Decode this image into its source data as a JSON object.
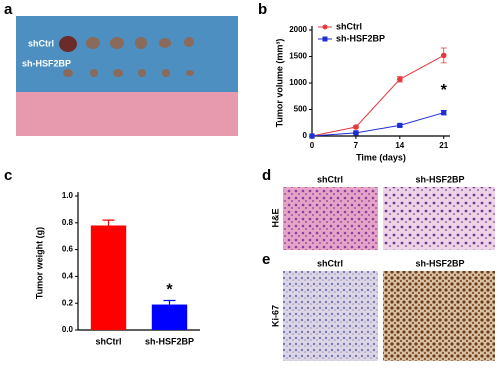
{
  "panels": {
    "a": {
      "letter": "a",
      "row_labels": [
        "shCtrl",
        "sh-HSF2BP"
      ]
    },
    "b": {
      "letter": "b"
    },
    "c": {
      "letter": "c"
    },
    "d": {
      "letter": "d",
      "columns": [
        "shCtrl",
        "sh-HSF2BP"
      ],
      "row_label": "H&E"
    },
    "e": {
      "letter": "e",
      "columns": [
        "shCtrl",
        "sh-HSF2BP"
      ],
      "row_label": "Ki-67"
    }
  },
  "chart_data": [
    {
      "type": "line",
      "xlabel": "Time (days)",
      "ylabel": "Tumor volume (mm³)",
      "x": [
        0,
        7,
        14,
        21
      ],
      "xlim": [
        0,
        22
      ],
      "xticks": [
        0,
        7,
        14,
        21
      ],
      "ylim": [
        0,
        2000
      ],
      "yticks": [
        0,
        500,
        1000,
        1500,
        2000
      ],
      "series": [
        {
          "name": "shCtrl",
          "color": "#e8383d",
          "marker": "circle",
          "values": [
            0,
            170,
            1070,
            1520
          ],
          "errors": [
            0,
            20,
            50,
            140
          ]
        },
        {
          "name": "sh-HSF2BP",
          "color": "#1f2fd6",
          "marker": "square",
          "values": [
            0,
            60,
            200,
            440
          ],
          "errors": [
            0,
            10,
            20,
            40
          ]
        }
      ],
      "annotation": "*"
    },
    {
      "type": "bar",
      "ylabel": "Tumor weight (g)",
      "categories": [
        "shCtrl",
        "sh-HSF2BP"
      ],
      "values": [
        0.78,
        0.19
      ],
      "errors": [
        0.04,
        0.03
      ],
      "colors": [
        "#ff0000",
        "#0000ff"
      ],
      "ylim": [
        0,
        1.0
      ],
      "yticks": [
        {
          "value": 0,
          "label": "0.0"
        },
        0.2,
        0.4,
        0.6,
        0.8,
        {
          "value": 1.0,
          "label": "1.0"
        }
      ],
      "annotation": "*"
    }
  ]
}
